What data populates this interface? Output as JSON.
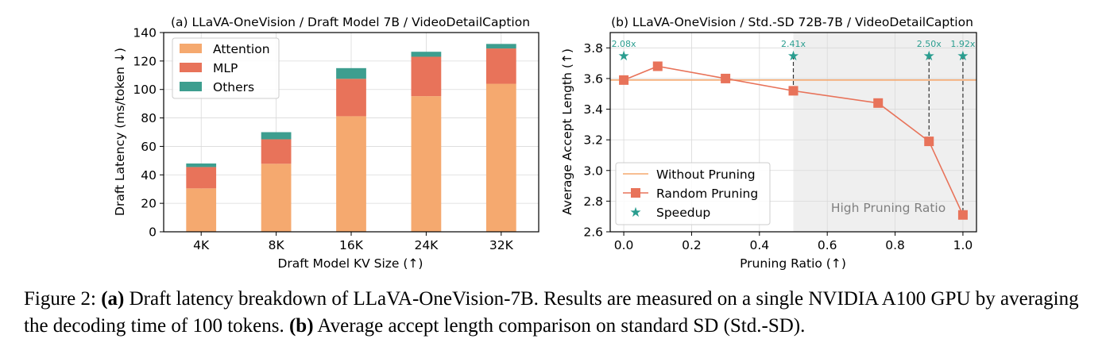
{
  "chart_data": [
    {
      "type": "bar",
      "stacked": true,
      "title": "(a) LLaVA-OneVision / Draft Model 7B / VideoDetailCaption",
      "xlabel": "Draft Model KV Size (↑)",
      "ylabel": "Draft Latency (ms/token ↓)",
      "ylim": [
        0,
        140
      ],
      "yticks": [
        "0",
        "20",
        "40",
        "60",
        "80",
        "100",
        "120",
        "140"
      ],
      "categories": [
        "4K",
        "8K",
        "16K",
        "24K",
        "32K"
      ],
      "series": [
        {
          "name": "Attention",
          "color": "#f5a96f",
          "values": [
            30.5,
            47.8,
            81.2,
            95.3,
            104.0
          ]
        },
        {
          "name": "MLP",
          "color": "#e8735a",
          "values": [
            15.0,
            17.2,
            26.3,
            27.7,
            24.8
          ]
        },
        {
          "name": "Others",
          "color": "#3d9e8f",
          "values": [
            2.5,
            5.0,
            7.5,
            3.5,
            3.2
          ]
        }
      ],
      "grid": true,
      "legend": "top-left"
    },
    {
      "type": "line",
      "title": "(b) LLaVA-OneVision / Std.-SD 72B-7B / VideoDetailCaption",
      "xlabel": "Pruning Ratio  (↑)",
      "ylabel": "Average Accept Length  (↑)",
      "xlim": [
        -0.04,
        1.04
      ],
      "ylim": [
        2.6,
        3.9
      ],
      "xticks": [
        "0.0",
        "0.2",
        "0.4",
        "0.6",
        "0.8",
        "1.0"
      ],
      "yticks": [
        "2.6",
        "2.8",
        "3.0",
        "3.2",
        "3.4",
        "3.6",
        "3.8"
      ],
      "series": [
        {
          "name": "Without Pruning",
          "color": "#f5a96f",
          "x": [
            -0.04,
            1.04
          ],
          "y": [
            3.59,
            3.59
          ]
        },
        {
          "name": "Random Pruning",
          "color": "#e8735a",
          "x": [
            0.0,
            0.1,
            0.3,
            0.5,
            0.75,
            0.9,
            1.0
          ],
          "y": [
            3.59,
            3.68,
            3.6,
            3.52,
            3.44,
            3.19,
            2.71
          ]
        },
        {
          "name": "Speedup",
          "color": "#2a9d8f",
          "x": [
            0.0,
            0.5,
            0.9,
            1.0
          ],
          "y": [
            3.75,
            3.75,
            3.75,
            3.75
          ],
          "labels": [
            "2.08x",
            "2.41x",
            "2.50x",
            "1.92x"
          ]
        }
      ],
      "shaded_region": {
        "x_from": 0.5,
        "x_to": 1.04,
        "label": "High Pruning Ratio"
      },
      "grid": true,
      "legend": "bottom-left"
    }
  ],
  "caption": {
    "prefix": "Figure 2: ",
    "a_tag": "(a)",
    "a_text": " Draft latency breakdown of LLaVA-OneVision-7B. Results are measured on a single NVIDIA A100 GPU by averaging the decoding time of 100 tokens. ",
    "b_tag": "(b)",
    "b_text": " Average accept length comparison on standard SD (Std.-SD)."
  }
}
